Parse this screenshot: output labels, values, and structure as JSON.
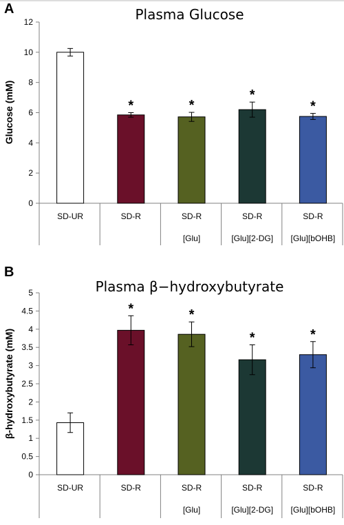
{
  "chart_data": [
    {
      "type": "bar",
      "panel_label": "A",
      "title": "Plasma Glucose",
      "ylabel": "Glucose (mM)",
      "xlabel": "",
      "ylim": [
        0,
        12
      ],
      "yticks": [
        0,
        2,
        4,
        6,
        8,
        10,
        12
      ],
      "grid": false,
      "categories": [
        {
          "line1": "SD-UR",
          "line2": ""
        },
        {
          "line1": "SD-R",
          "line2": ""
        },
        {
          "line1": "SD-R",
          "line2": "[Glu]"
        },
        {
          "line1": "SD-R",
          "line2": "[Glu][2-DG]"
        },
        {
          "line1": "SD-R",
          "line2": "[Glu][bOHB]"
        }
      ],
      "values": [
        10.0,
        5.85,
        5.72,
        6.2,
        5.75
      ],
      "errors": [
        0.25,
        0.15,
        0.3,
        0.5,
        0.2
      ],
      "significance": [
        "",
        "*",
        "*",
        "*",
        "*"
      ],
      "colors": [
        "#ffffff",
        "#6a1029",
        "#556121",
        "#1c3834",
        "#3b5aa2"
      ]
    },
    {
      "type": "bar",
      "panel_label": "B",
      "title": "Plasma β−hydroxybutyrate",
      "ylabel": "β-hydroxybutyrate (mM)",
      "xlabel": "",
      "ylim": [
        0,
        5
      ],
      "yticks": [
        0,
        0.5,
        1,
        1.5,
        2,
        2.5,
        3,
        3.5,
        4,
        4.5,
        5
      ],
      "grid": false,
      "categories": [
        {
          "line1": "SD-UR",
          "line2": ""
        },
        {
          "line1": "SD-R",
          "line2": ""
        },
        {
          "line1": "SD-R",
          "line2": "[Glu]"
        },
        {
          "line1": "SD-R",
          "line2": "[Glu][2-DG]"
        },
        {
          "line1": "SD-R",
          "line2": "[Glu][bOHB]"
        }
      ],
      "values": [
        1.43,
        3.97,
        3.86,
        3.16,
        3.3
      ],
      "errors": [
        0.27,
        0.4,
        0.34,
        0.41,
        0.36
      ],
      "significance": [
        "",
        "*",
        "*",
        "*",
        "*"
      ],
      "colors": [
        "#ffffff",
        "#6a1029",
        "#556121",
        "#1c3834",
        "#3b5aa2"
      ]
    }
  ]
}
